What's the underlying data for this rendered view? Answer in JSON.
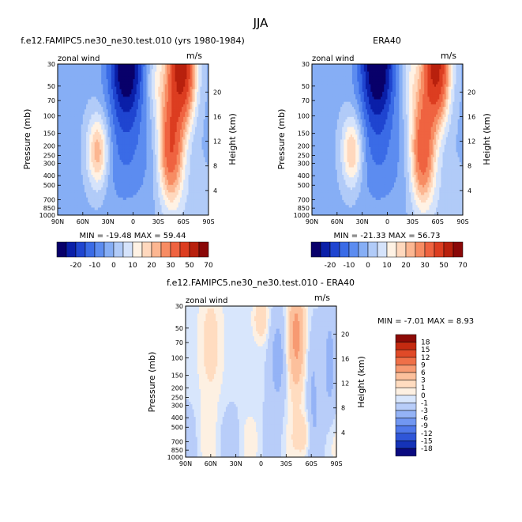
{
  "figure": {
    "title": "JJA",
    "diff_title": "f.e12.FAMIPC5.ne30_ne30.test.010 - ERA40",
    "diff_stats": "MIN =  -7.01   MAX =    8.93"
  },
  "chart_data": [
    {
      "type": "heatmap",
      "title": "f.e12.FAMIPC5.ne30_ne30.test.010 (yrs 1980-1984)",
      "variable": "zonal wind",
      "units": "m/s",
      "ylabel": "Pressure (mb)",
      "ylabel_right": "Height (km)",
      "x_ticks": [
        "90N",
        "60N",
        "30N",
        "0",
        "30S",
        "60S",
        "90S"
      ],
      "y_ticks": [
        30,
        50,
        70,
        100,
        150,
        200,
        250,
        300,
        400,
        500,
        700,
        850,
        1000
      ],
      "y_ticks_right": [
        4,
        8,
        12,
        16,
        20
      ],
      "stats": "MIN =  -19.48   MAX =   59.44",
      "min": -19.48,
      "max": 59.44,
      "colorbar_labels": [
        "-20",
        "-10",
        "0",
        "10",
        "20",
        "30",
        "50",
        "70"
      ],
      "features": [
        {
          "lat": 42,
          "p": 200,
          "peak": 22,
          "kind": "westerly jet"
        },
        {
          "lat": -45,
          "p": 170,
          "peak": 36,
          "kind": "westerly jet"
        },
        {
          "lat": -58,
          "p": 30,
          "peak": 59.44,
          "kind": "polar night jet"
        },
        {
          "lat": 8,
          "p": 30,
          "peak": -19.48,
          "kind": "stratospheric easterlies"
        }
      ]
    },
    {
      "type": "heatmap",
      "title": "ERA40",
      "variable": "zonal wind",
      "units": "m/s",
      "ylabel": "Pressure (mb)",
      "ylabel_right": "Height (km)",
      "x_ticks": [
        "90N",
        "60N",
        "30N",
        "0",
        "30S",
        "60S",
        "90S"
      ],
      "y_ticks": [
        30,
        50,
        70,
        100,
        150,
        200,
        250,
        300,
        400,
        500,
        700,
        850,
        1000
      ],
      "y_ticks_right": [
        4,
        8,
        12,
        16,
        20
      ],
      "stats": "MIN =  -21.33   MAX =   56.73",
      "min": -21.33,
      "max": 56.73,
      "colorbar_labels": [
        "-20",
        "-10",
        "0",
        "10",
        "20",
        "30",
        "50",
        "70"
      ],
      "features": [
        {
          "lat": 42,
          "p": 200,
          "peak": 20,
          "kind": "westerly jet"
        },
        {
          "lat": -42,
          "p": 180,
          "peak": 34,
          "kind": "westerly jet"
        },
        {
          "lat": -58,
          "p": 30,
          "peak": 56.73,
          "kind": "polar night jet"
        },
        {
          "lat": 12,
          "p": 30,
          "peak": -21.33,
          "kind": "stratospheric easterlies"
        }
      ]
    },
    {
      "type": "heatmap",
      "title": "f.e12.FAMIPC5.ne30_ne30.test.010 - ERA40",
      "variable": "zonal wind",
      "units": "m/s",
      "ylabel": "Pressure (mb)",
      "ylabel_right": "Height (km)",
      "x_ticks": [
        "90N",
        "60N",
        "30N",
        "0",
        "30S",
        "60S",
        "90S"
      ],
      "y_ticks": [
        30,
        50,
        70,
        100,
        150,
        200,
        250,
        300,
        400,
        500,
        700,
        850,
        1000
      ],
      "y_ticks_right": [
        4,
        8,
        12,
        16,
        20
      ],
      "min": -7.01,
      "max": 8.93,
      "colorbar_labels": [
        "18",
        "15",
        "12",
        "9",
        "6",
        "3",
        "1",
        "0",
        "-1",
        "-3",
        "-6",
        "-9",
        "-12",
        "-15",
        "-18"
      ]
    }
  ],
  "colors": {
    "abs_levels": [
      "#08006a",
      "#0a1fa8",
      "#1f45d0",
      "#3a6be6",
      "#5c8cf0",
      "#86aef5",
      "#b1cbf8",
      "#d5e3fb",
      "#fff2e4",
      "#ffd8bd",
      "#fcb691",
      "#f78c63",
      "#ef6340",
      "#dc3d20",
      "#b8200d",
      "#8a0808"
    ],
    "diff_levels": [
      "#0a0a80",
      "#1533b8",
      "#2f56d8",
      "#4f78ea",
      "#7197f2",
      "#94b3f6",
      "#b8cdf9",
      "#d8e6fc",
      "#fdf0e2",
      "#ffdcc0",
      "#fcc09c",
      "#f79a72",
      "#ef7048",
      "#e04a28",
      "#c42a10",
      "#8c0a06"
    ]
  }
}
